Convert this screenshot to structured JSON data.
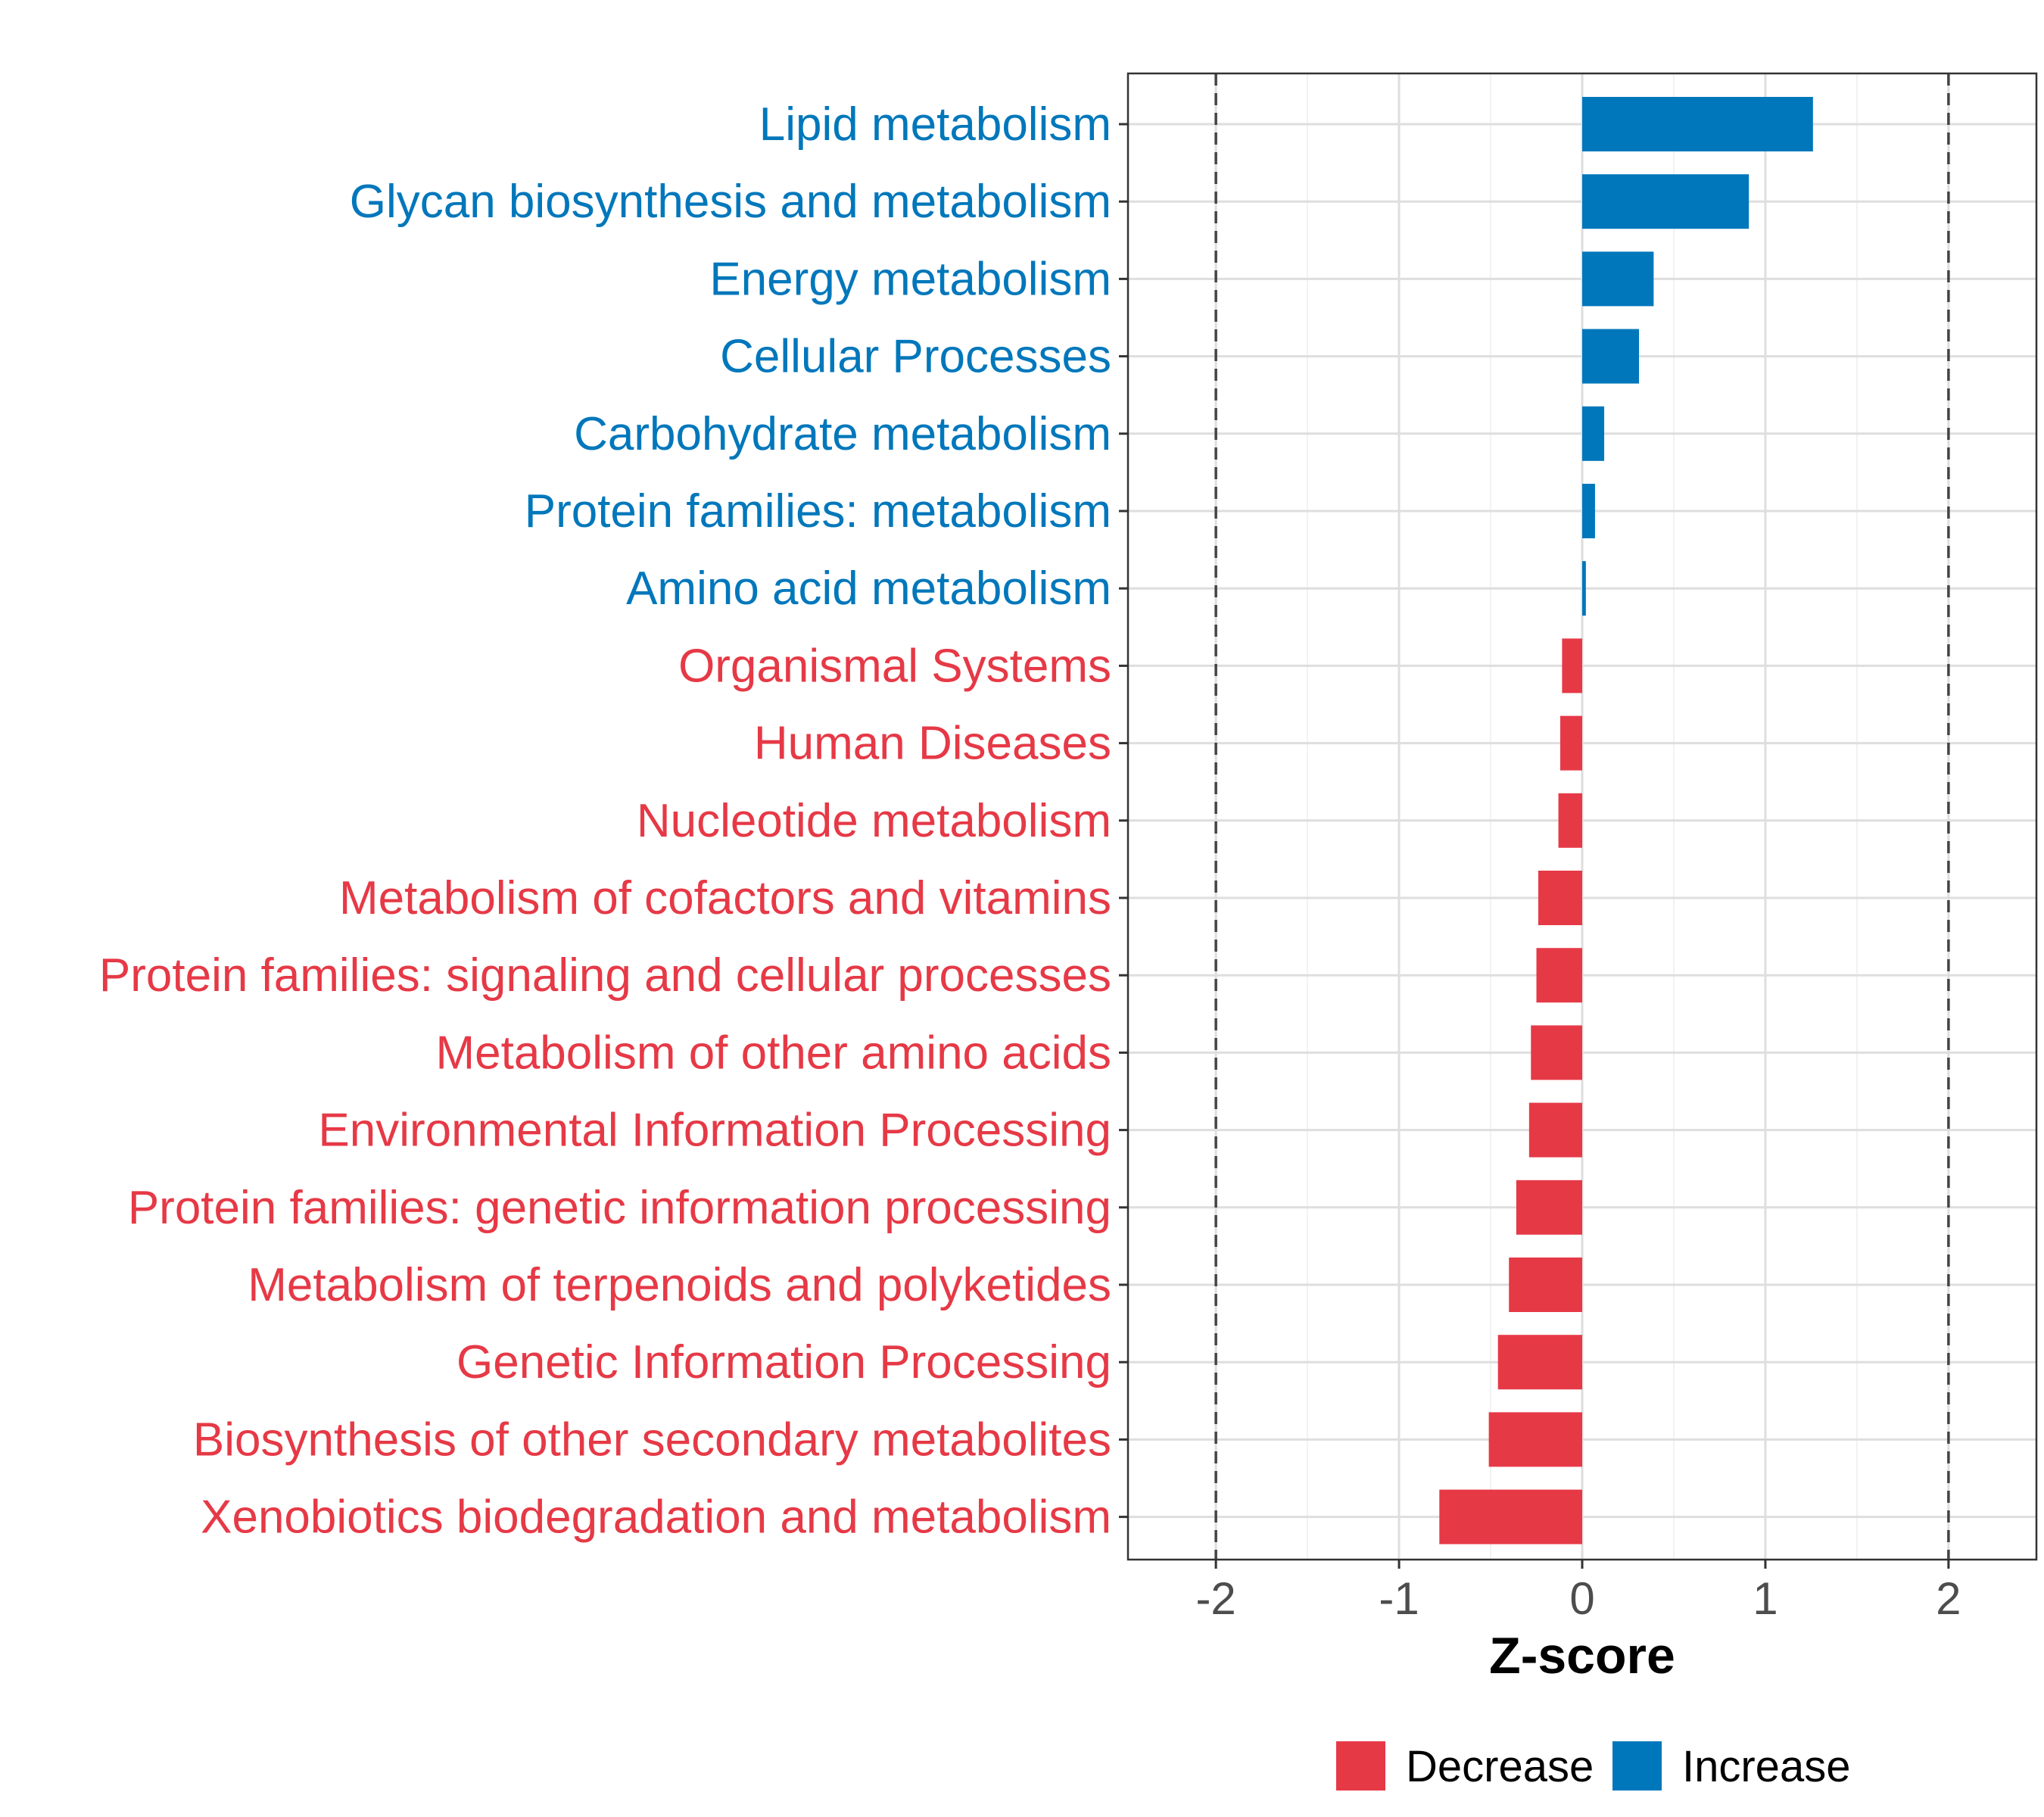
{
  "chart_data": {
    "type": "bar",
    "orientation": "horizontal",
    "title": "",
    "xlabel": "Z-score",
    "ylabel": "",
    "xlim": [
      -2.48,
      2.48
    ],
    "x_ticks": [
      -2,
      -1,
      0,
      1,
      2
    ],
    "x_tick_labels": [
      "-2",
      "-1",
      "0",
      "1",
      "2"
    ],
    "reference_lines": [
      -2,
      2
    ],
    "grid": true,
    "legend_position": "bottom",
    "colors": {
      "Decrease": "#E63946",
      "Increase": "#0077BB"
    },
    "categories": [
      "Lipid metabolism",
      "Glycan biosynthesis and metabolism",
      "Energy metabolism",
      "Cellular Processes",
      "Carbohydrate metabolism",
      "Protein families: metabolism",
      "Amino acid metabolism",
      "Organismal Systems",
      "Human Diseases",
      "Nucleotide metabolism",
      "Metabolism of cofactors and vitamins",
      "Protein families: signaling and cellular processes",
      "Metabolism of other amino acids",
      "Environmental Information Processing",
      "Protein families: genetic information processing",
      "Metabolism of terpenoids and polyketides",
      "Genetic Information Processing",
      "Biosynthesis of other secondary metabolites",
      "Xenobiotics biodegradation and metabolism"
    ],
    "values": [
      1.26,
      0.91,
      0.39,
      0.31,
      0.12,
      0.07,
      0.02,
      -0.11,
      -0.12,
      -0.13,
      -0.24,
      -0.25,
      -0.28,
      -0.29,
      -0.36,
      -0.4,
      -0.46,
      -0.51,
      -0.78
    ],
    "groups": [
      "Increase",
      "Increase",
      "Increase",
      "Increase",
      "Increase",
      "Increase",
      "Increase",
      "Decrease",
      "Decrease",
      "Decrease",
      "Decrease",
      "Decrease",
      "Decrease",
      "Decrease",
      "Decrease",
      "Decrease",
      "Decrease",
      "Decrease",
      "Decrease"
    ],
    "legend": [
      {
        "label": "Decrease",
        "color": "#E63946"
      },
      {
        "label": "Increase",
        "color": "#0077BB"
      }
    ]
  }
}
